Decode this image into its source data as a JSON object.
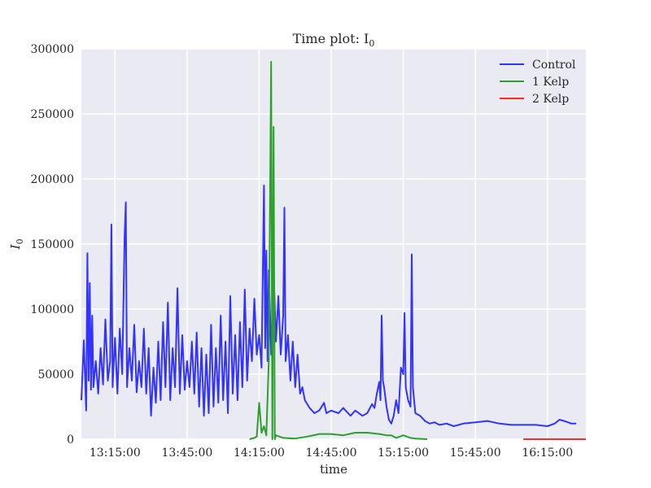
{
  "chart_data": {
    "type": "line",
    "title": "Time plot: I",
    "title_subscript": "0",
    "xlabel": "time",
    "ylabel": "I",
    "ylabel_subscript": "0",
    "x_ticks": [
      "13:15:00",
      "13:45:00",
      "14:15:00",
      "14:45:00",
      "15:15:00",
      "15:45:00",
      "16:15:00"
    ],
    "y_ticks": [
      "0",
      "50000",
      "100000",
      "150000",
      "200000",
      "250000",
      "300000"
    ],
    "xlim": [
      "13:01:00",
      "16:31:00"
    ],
    "ylim": [
      0,
      300000
    ],
    "grid": true,
    "legend_position": "top-right",
    "series": [
      {
        "name": "Control",
        "color": "#3333ff",
        "points": [
          [
            "13:01:00",
            30000
          ],
          [
            "13:02:00",
            76000
          ],
          [
            "13:03:00",
            22000
          ],
          [
            "13:03:30",
            143000
          ],
          [
            "13:04:00",
            45000
          ],
          [
            "13:04:30",
            120000
          ],
          [
            "13:05:00",
            38000
          ],
          [
            "13:05:30",
            95000
          ],
          [
            "13:06:00",
            40000
          ],
          [
            "13:07:00",
            60000
          ],
          [
            "13:08:00",
            35000
          ],
          [
            "13:09:00",
            70000
          ],
          [
            "13:10:00",
            42000
          ],
          [
            "13:11:00",
            92000
          ],
          [
            "13:12:00",
            45000
          ],
          [
            "13:13:00",
            60000
          ],
          [
            "13:13:30",
            165000
          ],
          [
            "13:14:00",
            40000
          ],
          [
            "13:15:00",
            78000
          ],
          [
            "13:16:00",
            35000
          ],
          [
            "13:17:00",
            85000
          ],
          [
            "13:18:00",
            50000
          ],
          [
            "13:19:00",
            155000
          ],
          [
            "13:19:30",
            182000
          ],
          [
            "13:20:00",
            40000
          ],
          [
            "13:21:00",
            70000
          ],
          [
            "13:22:00",
            45000
          ],
          [
            "13:23:00",
            88000
          ],
          [
            "13:24:00",
            36000
          ],
          [
            "13:25:00",
            60000
          ],
          [
            "13:26:00",
            40000
          ],
          [
            "13:27:00",
            85000
          ],
          [
            "13:28:00",
            35000
          ],
          [
            "13:29:00",
            70000
          ],
          [
            "13:30:00",
            18000
          ],
          [
            "13:31:00",
            55000
          ],
          [
            "13:32:00",
            28000
          ],
          [
            "13:33:00",
            75000
          ],
          [
            "13:34:00",
            30000
          ],
          [
            "13:35:00",
            90000
          ],
          [
            "13:36:00",
            40000
          ],
          [
            "13:37:00",
            105000
          ],
          [
            "13:38:00",
            30000
          ],
          [
            "13:39:00",
            70000
          ],
          [
            "13:40:00",
            40000
          ],
          [
            "13:41:00",
            116000
          ],
          [
            "13:42:00",
            35000
          ],
          [
            "13:43:00",
            80000
          ],
          [
            "13:44:00",
            38000
          ],
          [
            "13:45:00",
            60000
          ],
          [
            "13:46:00",
            40000
          ],
          [
            "13:47:00",
            75000
          ],
          [
            "13:48:00",
            35000
          ],
          [
            "13:49:00",
            82000
          ],
          [
            "13:50:00",
            25000
          ],
          [
            "13:51:00",
            70000
          ],
          [
            "13:52:00",
            18000
          ],
          [
            "13:53:00",
            65000
          ],
          [
            "13:54:00",
            20000
          ],
          [
            "13:55:00",
            88000
          ],
          [
            "13:56:00",
            25000
          ],
          [
            "13:57:00",
            70000
          ],
          [
            "13:58:00",
            28000
          ],
          [
            "13:59:00",
            95000
          ],
          [
            "14:00:00",
            30000
          ],
          [
            "14:01:00",
            75000
          ],
          [
            "14:02:00",
            20000
          ],
          [
            "14:03:00",
            110000
          ],
          [
            "14:04:00",
            35000
          ],
          [
            "14:05:00",
            80000
          ],
          [
            "14:06:00",
            30000
          ],
          [
            "14:07:00",
            90000
          ],
          [
            "14:08:00",
            40000
          ],
          [
            "14:09:00",
            115000
          ],
          [
            "14:10:00",
            45000
          ],
          [
            "14:11:00",
            85000
          ],
          [
            "14:12:00",
            60000
          ],
          [
            "14:13:00",
            108000
          ],
          [
            "14:14:00",
            65000
          ],
          [
            "14:15:00",
            80000
          ],
          [
            "14:16:00",
            55000
          ],
          [
            "14:17:00",
            195000
          ],
          [
            "14:17:30",
            70000
          ],
          [
            "14:18:00",
            145000
          ],
          [
            "14:18:30",
            60000
          ],
          [
            "14:19:00",
            130000
          ],
          [
            "14:20:00",
            65000
          ],
          [
            "14:21:00",
            130000
          ],
          [
            "14:22:00",
            75000
          ],
          [
            "14:23:00",
            110000
          ],
          [
            "14:24:00",
            65000
          ],
          [
            "14:25:00",
            95000
          ],
          [
            "14:25:30",
            178000
          ],
          [
            "14:26:00",
            60000
          ],
          [
            "14:27:00",
            80000
          ],
          [
            "14:28:00",
            45000
          ],
          [
            "14:29:00",
            75000
          ],
          [
            "14:30:00",
            40000
          ],
          [
            "14:31:00",
            65000
          ],
          [
            "14:32:00",
            35000
          ],
          [
            "14:33:00",
            40000
          ],
          [
            "14:34:00",
            30000
          ],
          [
            "14:36:00",
            24000
          ],
          [
            "14:38:00",
            20000
          ],
          [
            "14:40:00",
            22000
          ],
          [
            "14:42:00",
            28000
          ],
          [
            "14:43:00",
            20000
          ],
          [
            "14:45:00",
            22000
          ],
          [
            "14:48:00",
            20000
          ],
          [
            "14:50:00",
            24000
          ],
          [
            "14:53:00",
            18000
          ],
          [
            "14:55:00",
            22000
          ],
          [
            "14:58:00",
            18000
          ],
          [
            "15:00:00",
            20000
          ],
          [
            "15:02:00",
            27000
          ],
          [
            "15:03:00",
            24000
          ],
          [
            "15:04:00",
            35000
          ],
          [
            "15:05:00",
            44000
          ],
          [
            "15:05:30",
            30000
          ],
          [
            "15:06:00",
            95000
          ],
          [
            "15:06:30",
            45000
          ],
          [
            "15:07:00",
            40000
          ],
          [
            "15:08:00",
            25000
          ],
          [
            "15:09:00",
            15000
          ],
          [
            "15:10:00",
            12000
          ],
          [
            "15:11:00",
            18000
          ],
          [
            "15:12:00",
            30000
          ],
          [
            "15:13:00",
            20000
          ],
          [
            "15:14:00",
            55000
          ],
          [
            "15:15:00",
            50000
          ],
          [
            "15:15:30",
            97000
          ],
          [
            "15:16:00",
            40000
          ],
          [
            "15:17:00",
            30000
          ],
          [
            "15:18:00",
            25000
          ],
          [
            "15:18:30",
            142000
          ],
          [
            "15:19:00",
            40000
          ],
          [
            "15:20:00",
            20000
          ],
          [
            "15:22:00",
            18000
          ],
          [
            "15:24:00",
            14000
          ],
          [
            "15:26:00",
            12000
          ],
          [
            "15:28:00",
            13000
          ],
          [
            "15:30:00",
            11000
          ],
          [
            "15:33:00",
            12000
          ],
          [
            "15:36:00",
            10000
          ],
          [
            "15:40:00",
            12000
          ],
          [
            "15:45:00",
            13000
          ],
          [
            "15:50:00",
            14000
          ],
          [
            "15:55:00",
            12000
          ],
          [
            "16:00:00",
            11000
          ],
          [
            "16:05:00",
            11000
          ],
          [
            "16:10:00",
            11000
          ],
          [
            "16:15:00",
            10000
          ],
          [
            "16:18:00",
            12000
          ],
          [
            "16:20:00",
            15000
          ],
          [
            "16:22:00",
            14000
          ],
          [
            "16:25:00",
            12000
          ],
          [
            "16:27:00",
            12000
          ]
        ]
      },
      {
        "name": "1 Kelp",
        "color": "#2ca02c",
        "points": [
          [
            "14:11:00",
            0
          ],
          [
            "14:13:00",
            1000
          ],
          [
            "14:14:00",
            2000
          ],
          [
            "14:15:00",
            28000
          ],
          [
            "14:16:00",
            5000
          ],
          [
            "14:17:00",
            10000
          ],
          [
            "14:18:00",
            3000
          ],
          [
            "14:19:00",
            60000
          ],
          [
            "14:20:00",
            290000
          ],
          [
            "14:20:30",
            0
          ],
          [
            "14:21:00",
            240000
          ],
          [
            "14:21:30",
            0
          ],
          [
            "14:22:00",
            3000
          ],
          [
            "14:25:00",
            1000
          ],
          [
            "14:30:00",
            500
          ],
          [
            "14:35:00",
            2000
          ],
          [
            "14:40:00",
            4000
          ],
          [
            "14:45:00",
            4000
          ],
          [
            "14:50:00",
            3000
          ],
          [
            "14:55:00",
            5000
          ],
          [
            "15:00:00",
            5000
          ],
          [
            "15:05:00",
            4000
          ],
          [
            "15:08:00",
            3000
          ],
          [
            "15:10:00",
            3000
          ],
          [
            "15:12:00",
            1000
          ],
          [
            "15:15:00",
            3000
          ],
          [
            "15:18:00",
            1000
          ],
          [
            "15:20:00",
            500
          ],
          [
            "15:25:00",
            0
          ]
        ]
      },
      {
        "name": "2 Kelp",
        "color": "#ff2a2a",
        "points": [
          [
            "16:05:00",
            0
          ],
          [
            "16:31:00",
            0
          ]
        ]
      }
    ]
  }
}
